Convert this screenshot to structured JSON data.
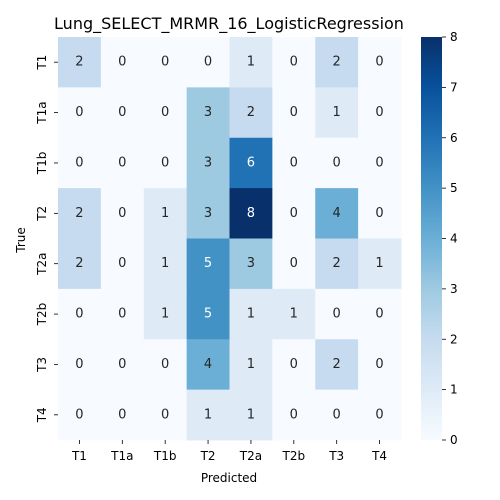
{
  "chart_data": {
    "type": "heatmap",
    "title": "Lung_SELECT_MRMR_16_LogisticRegression",
    "xlabel": "Predicted",
    "ylabel": "True",
    "x_categories": [
      "T1",
      "T1a",
      "T1b",
      "T2",
      "T2a",
      "T2b",
      "T3",
      "T4"
    ],
    "y_categories": [
      "T1",
      "T1a",
      "T1b",
      "T2",
      "T2a",
      "T2b",
      "T3",
      "T4"
    ],
    "matrix": [
      [
        2,
        0,
        0,
        0,
        1,
        0,
        2,
        0
      ],
      [
        0,
        0,
        0,
        3,
        2,
        0,
        1,
        0
      ],
      [
        0,
        0,
        0,
        3,
        6,
        0,
        0,
        0
      ],
      [
        2,
        0,
        1,
        3,
        8,
        0,
        4,
        0
      ],
      [
        2,
        0,
        1,
        5,
        3,
        0,
        2,
        1
      ],
      [
        0,
        0,
        1,
        5,
        1,
        1,
        0,
        0
      ],
      [
        0,
        0,
        0,
        4,
        1,
        0,
        2,
        0
      ],
      [
        0,
        0,
        0,
        1,
        1,
        0,
        0,
        0
      ]
    ],
    "colorbar": {
      "range": [
        0,
        8
      ],
      "ticks": [
        0,
        1,
        2,
        3,
        4,
        5,
        6,
        7,
        8
      ],
      "colormap": "Blues"
    }
  }
}
